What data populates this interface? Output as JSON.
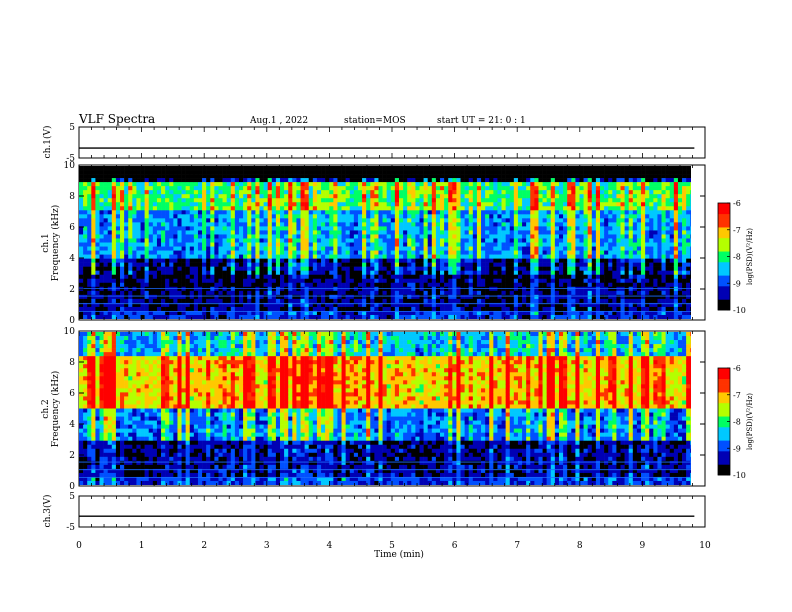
{
  "header": {
    "title": "VLF Spectra",
    "date": "Aug.1  , 2022",
    "station": "station=MOS",
    "start": "start UT =  21: 0  : 1"
  },
  "colormap": [
    "#000000",
    "#0000b4",
    "#0050ff",
    "#00c8ff",
    "#00ff64",
    "#b4ff00",
    "#ffc800",
    "#ff3200",
    "#ff0000"
  ],
  "chart_data": [
    {
      "type": "line",
      "name": "ch1-voltage",
      "ylabel": "ch.1(V)",
      "ylim": [
        -5,
        5
      ],
      "yticks": [
        "5",
        "-5"
      ],
      "xlim": [
        0,
        10
      ],
      "level": -1.8
    },
    {
      "type": "heatmap",
      "name": "ch1-spectrogram",
      "ylabel": "ch.1\nFrequency (kHz)",
      "ylim": [
        0,
        10
      ],
      "yticks": [
        "0",
        "2",
        "4",
        "6",
        "8",
        "10"
      ],
      "xlim": [
        0,
        9.83
      ],
      "colorbar": {
        "label": "log(PSD)(V²/Hz)",
        "range": [
          -10,
          -6
        ],
        "ticks": [
          "-6",
          "-7",
          "-8",
          "-9",
          "-10"
        ]
      },
      "mean_psd_by_band": [
        {
          "band_khz": [
            0,
            0.5
          ],
          "log_psd": -9.3
        },
        {
          "band_khz": [
            0.5,
            2
          ],
          "log_psd": -9.7
        },
        {
          "band_khz": [
            2,
            4
          ],
          "log_psd": -9.8
        },
        {
          "band_khz": [
            4,
            7
          ],
          "log_psd": -8.9
        },
        {
          "band_khz": [
            7,
            9
          ],
          "log_psd": -8.2
        },
        {
          "band_khz": [
            9,
            10
          ],
          "log_psd": -9.9
        }
      ]
    },
    {
      "type": "heatmap",
      "name": "ch2-spectrogram",
      "ylabel": "ch.2\nFrequency (kHz)",
      "ylim": [
        0,
        10
      ],
      "yticks": [
        "0",
        "2",
        "4",
        "6",
        "8",
        "10"
      ],
      "xlim": [
        0,
        9.83
      ],
      "colorbar": {
        "label": "log(PSD)(V²/Hz)",
        "range": [
          -10,
          -6
        ],
        "ticks": [
          "-6",
          "-7",
          "-8",
          "-9",
          "-10"
        ]
      },
      "mean_psd_by_band": [
        {
          "band_khz": [
            0,
            0.5
          ],
          "log_psd": -9.2
        },
        {
          "band_khz": [
            0.5,
            3
          ],
          "log_psd": -9.6
        },
        {
          "band_khz": [
            3,
            5
          ],
          "log_psd": -9.0
        },
        {
          "band_khz": [
            5,
            8.5
          ],
          "log_psd": -7.4
        },
        {
          "band_khz": [
            8.5,
            10
          ],
          "log_psd": -8.7
        }
      ]
    },
    {
      "type": "line",
      "name": "ch3-voltage",
      "ylabel": "ch.3(V)",
      "ylim": [
        -5,
        5
      ],
      "yticks": [
        "5",
        "-5"
      ],
      "xlim": [
        0,
        10
      ],
      "level": -1.5
    }
  ],
  "xaxis": {
    "label": "Time (min)",
    "range": [
      0,
      10
    ],
    "ticks": [
      "0",
      "1",
      "2",
      "3",
      "4",
      "5",
      "6",
      "7",
      "8",
      "9",
      "10"
    ]
  }
}
